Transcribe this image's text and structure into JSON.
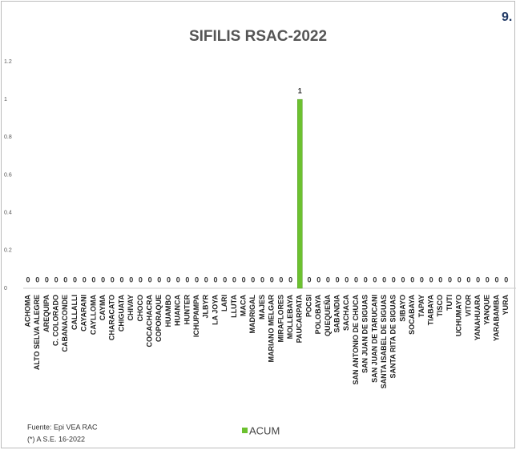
{
  "chart_data": {
    "type": "bar",
    "title": "SIFILIS RSAC-2022",
    "corner_text": "9.",
    "categories": [
      "ACHOMA",
      "ALTO SELVA ALEGRE",
      "AREQUIPA",
      "C. COLORADO",
      "CABANACONDE",
      "CALLALLI",
      "CAYARANI",
      "CAYLLOMA",
      "CAYMA",
      "CHARACATO",
      "CHIGUATA",
      "CHIVAY",
      "CHOCO",
      "COCACHACRA",
      "COPORAQUE",
      "HUAMBO",
      "HUANCA",
      "HUNTER",
      "ICHUPAMPA",
      "JLBYR",
      "LA JOYA",
      "LARI",
      "LLUTA",
      "MACA",
      "MADRIGAL",
      "MAJES",
      "MARIANO MELGAR",
      "MIRAFLORES",
      "MOLLEBAYA",
      "PAUCARPATA",
      "POCSI",
      "POLOBAYA",
      "QUEQUEÑA",
      "SABANDIA",
      "SACHACA",
      "SAN ANTONIO DE CHUCA",
      "SAN JUAN DE SIGUAS",
      "SAN JUAN DE TARUCANI",
      "SANTA ISABEL DE SIGUAS",
      "SANTA RITA DE SIGUAS",
      "SIBAYO",
      "SOCABAYA",
      "TAPAY",
      "TIABAYA",
      "TISCO",
      "TUTI",
      "UCHUMAYO",
      "VITOR",
      "YANAHUARA",
      "YANQUE",
      "YARABAMBA",
      "YURA"
    ],
    "series": [
      {
        "name": "ACUM",
        "color": "#6cc12f",
        "values": [
          0,
          0,
          0,
          0,
          0,
          0,
          0,
          0,
          0,
          0,
          0,
          0,
          0,
          0,
          0,
          0,
          0,
          0,
          0,
          0,
          0,
          0,
          0,
          0,
          0,
          0,
          0,
          0,
          0,
          1,
          0,
          0,
          0,
          0,
          0,
          0,
          0,
          0,
          0,
          0,
          0,
          0,
          0,
          0,
          0,
          0,
          0,
          0,
          0,
          0,
          0,
          0
        ]
      }
    ],
    "ylim": [
      0,
      1.2
    ],
    "yticks": [
      0,
      0.2,
      0.4,
      0.6,
      0.8,
      1,
      1.2
    ],
    "grid": false,
    "footnotes": [
      "Fuente: Epi VEA RAC",
      "(*) A S.E. 16-2022"
    ]
  }
}
